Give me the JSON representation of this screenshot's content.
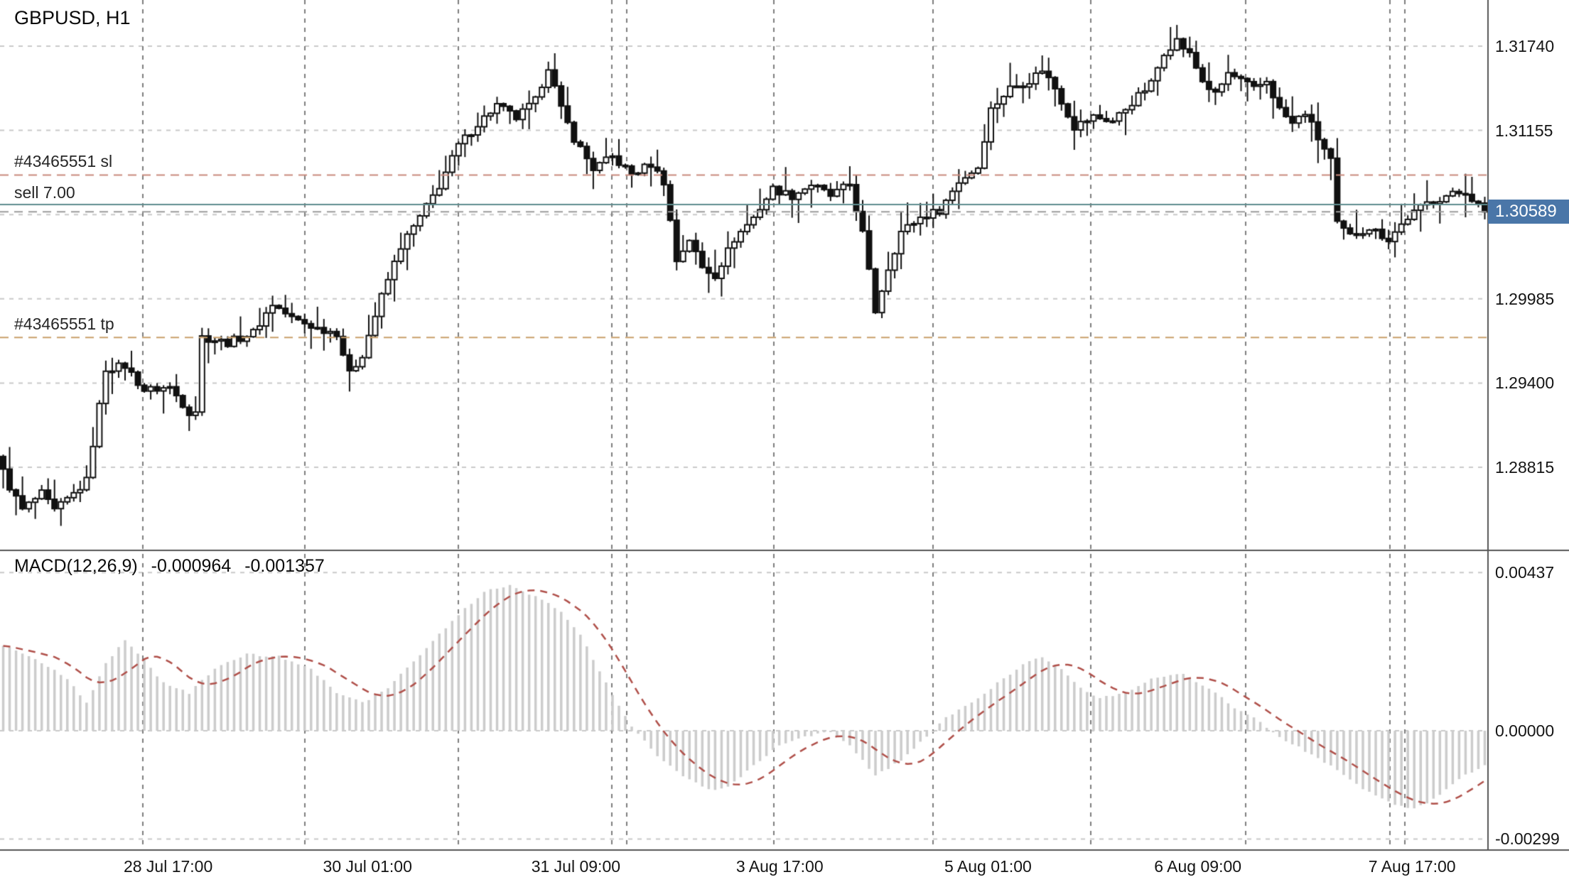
{
  "header": {
    "symbol_label": "GBPUSD, H1"
  },
  "indicator_label": {
    "name": "MACD(12,26,9)",
    "main": "-0.000964",
    "signal": "-0.001357"
  },
  "trade": {
    "sl": {
      "label": "#43465551 sl",
      "price": 1.30845
    },
    "tp": {
      "label": "#43465551 tp",
      "price": 1.29717
    },
    "open": {
      "label": "sell 7.00",
      "price": 1.3064
    },
    "bid": {
      "label": "1.30589",
      "price": 1.30589
    }
  },
  "colors": {
    "background": "#ffffff",
    "grid_h": "#c9c9c9",
    "grid_v": "#7e7e7e",
    "candle_up_fill": "#ffffff",
    "candle_down_fill": "#111111",
    "candle_border": "#111111",
    "macd_histogram": "#cccccc",
    "macd_signal": "#b0504a",
    "price_box": "#4a76a8",
    "sl_line": "#c98a7d",
    "tp_line": "#c9a06b",
    "open_line": "#5f8d8f",
    "bid_line": "#9b9b9b",
    "panel_border": "#555555"
  },
  "chart_data": {
    "type": "candlestick",
    "title": "GBPUSD, H1",
    "symbol": "GBPUSD",
    "timeframe": "H1",
    "bars": 232,
    "last_close": 1.30589,
    "price_path_anchors": [
      [
        0,
        1.2889
      ],
      [
        2,
        1.2868
      ],
      [
        4,
        1.2852
      ],
      [
        7,
        1.2863
      ],
      [
        9,
        1.2851
      ],
      [
        12,
        1.2863
      ],
      [
        14,
        1.2872
      ],
      [
        17,
        1.295
      ],
      [
        20,
        1.2952
      ],
      [
        23,
        1.2935
      ],
      [
        27,
        1.2937
      ],
      [
        30,
        1.292
      ],
      [
        31,
        1.2921
      ],
      [
        32,
        1.2972
      ],
      [
        36,
        1.2968
      ],
      [
        40,
        1.2975
      ],
      [
        43,
        1.2995
      ],
      [
        46,
        1.2985
      ],
      [
        50,
        1.2978
      ],
      [
        53,
        1.2975
      ],
      [
        55,
        1.2946
      ],
      [
        57,
        1.296
      ],
      [
        60,
        1.3
      ],
      [
        63,
        1.3035
      ],
      [
        66,
        1.3055
      ],
      [
        69,
        1.3077
      ],
      [
        72,
        1.3105
      ],
      [
        75,
        1.312
      ],
      [
        78,
        1.3133
      ],
      [
        81,
        1.3124
      ],
      [
        84,
        1.3136
      ],
      [
        86,
        1.316
      ],
      [
        88,
        1.313
      ],
      [
        90,
        1.311
      ],
      [
        93,
        1.3089
      ],
      [
        96,
        1.3097
      ],
      [
        99,
        1.3085
      ],
      [
        102,
        1.3092
      ],
      [
        104,
        1.308
      ],
      [
        106,
        1.3025
      ],
      [
        108,
        1.304
      ],
      [
        110,
        1.302
      ],
      [
        112,
        1.3015
      ],
      [
        115,
        1.304
      ],
      [
        118,
        1.3055
      ],
      [
        121,
        1.3075
      ],
      [
        124,
        1.307
      ],
      [
        127,
        1.3078
      ],
      [
        130,
        1.307
      ],
      [
        133,
        1.3078
      ],
      [
        135,
        1.3044
      ],
      [
        137,
        1.299
      ],
      [
        139,
        1.302
      ],
      [
        141,
        1.3045
      ],
      [
        144,
        1.3055
      ],
      [
        147,
        1.306
      ],
      [
        150,
        1.308
      ],
      [
        153,
        1.309
      ],
      [
        155,
        1.313
      ],
      [
        158,
        1.3145
      ],
      [
        161,
        1.315
      ],
      [
        163,
        1.3158
      ],
      [
        165,
        1.3145
      ],
      [
        168,
        1.3118
      ],
      [
        171,
        1.3125
      ],
      [
        174,
        1.3122
      ],
      [
        177,
        1.3135
      ],
      [
        180,
        1.3148
      ],
      [
        182,
        1.317
      ],
      [
        184,
        1.3178
      ],
      [
        186,
        1.3168
      ],
      [
        188,
        1.315
      ],
      [
        190,
        1.314
      ],
      [
        192,
        1.3155
      ],
      [
        194,
        1.315
      ],
      [
        196,
        1.3144
      ],
      [
        198,
        1.315
      ],
      [
        200,
        1.313
      ],
      [
        202,
        1.312
      ],
      [
        204,
        1.3128
      ],
      [
        206,
        1.311
      ],
      [
        208,
        1.3095
      ],
      [
        209,
        1.305
      ],
      [
        211,
        1.3042
      ],
      [
        214,
        1.3048
      ],
      [
        217,
        1.304
      ],
      [
        220,
        1.3055
      ],
      [
        223,
        1.3065
      ],
      [
        226,
        1.307
      ],
      [
        229,
        1.3073
      ],
      [
        232,
        1.30589
      ]
    ],
    "indicator": {
      "type": "macd_histogram",
      "fast": 12,
      "slow": 26,
      "signal_period": 9,
      "last_main": -0.000964,
      "last_signal": -0.001357,
      "anchors": [
        [
          0,
          0.00237
        ],
        [
          5,
          0.00197
        ],
        [
          10,
          0.00144
        ],
        [
          13,
          0.00077
        ],
        [
          16,
          0.00184
        ],
        [
          19,
          0.0025
        ],
        [
          22,
          0.00197
        ],
        [
          25,
          0.00131
        ],
        [
          29,
          0.00104
        ],
        [
          33,
          0.00171
        ],
        [
          38,
          0.00211
        ],
        [
          43,
          0.00205
        ],
        [
          48,
          0.00171
        ],
        [
          52,
          0.00104
        ],
        [
          56,
          0.00077
        ],
        [
          60,
          0.00117
        ],
        [
          65,
          0.00211
        ],
        [
          70,
          0.00304
        ],
        [
          75,
          0.00384
        ],
        [
          79,
          0.00402
        ],
        [
          83,
          0.0037
        ],
        [
          87,
          0.0033
        ],
        [
          90,
          0.00264
        ],
        [
          94,
          0.00131
        ],
        [
          98,
          0.00011
        ],
        [
          102,
          -0.00069
        ],
        [
          106,
          -0.00123
        ],
        [
          110,
          -0.00163
        ],
        [
          113,
          -0.00157
        ],
        [
          117,
          -0.00096
        ],
        [
          121,
          -0.00043
        ],
        [
          125,
          -0.00016
        ],
        [
          129,
          -3e-05
        ],
        [
          132,
          -0.00043
        ],
        [
          136,
          -0.00123
        ],
        [
          140,
          -0.00083
        ],
        [
          144,
          -0.00016
        ],
        [
          147,
          0.00037
        ],
        [
          151,
          0.00077
        ],
        [
          155,
          0.00131
        ],
        [
          159,
          0.00184
        ],
        [
          162,
          0.00205
        ],
        [
          165,
          0.00171
        ],
        [
          168,
          0.00117
        ],
        [
          171,
          0.00091
        ],
        [
          175,
          0.00104
        ],
        [
          179,
          0.00144
        ],
        [
          184,
          0.00157
        ],
        [
          188,
          0.00117
        ],
        [
          192,
          0.00064
        ],
        [
          196,
          0.00024
        ],
        [
          199,
          -0.00016
        ],
        [
          203,
          -0.00056
        ],
        [
          207,
          -0.00096
        ],
        [
          211,
          -0.00149
        ],
        [
          215,
          -0.00189
        ],
        [
          219,
          -0.00216
        ],
        [
          222,
          -0.00203
        ],
        [
          225,
          -0.00163
        ],
        [
          228,
          -0.00123
        ],
        [
          231,
          -0.000964
        ]
      ]
    },
    "y_axis": {
      "ticks": [
        {
          "v": 1.3174,
          "label": "1.31740"
        },
        {
          "v": 1.31155,
          "label": "1.31155"
        },
        {
          "v": 1.29985,
          "label": "1.29985"
        },
        {
          "v": 1.294,
          "label": "1.29400"
        },
        {
          "v": 1.28815,
          "label": "1.28815"
        }
      ],
      "grid_extra": [
        1.3057
      ],
      "current": {
        "v": 1.30589,
        "label": "1.30589"
      }
    },
    "macd_axis": {
      "ticks": [
        {
          "v": 0.00437,
          "label": "0.00437"
        },
        {
          "v": 0.0,
          "label": "0.00000"
        },
        {
          "v": -0.00299,
          "label": "-0.00299"
        }
      ]
    },
    "x_axis": {
      "ticks": [
        {
          "f": 0.113,
          "label": "28 Jul 17:00"
        },
        {
          "f": 0.247,
          "label": "30 Jul 01:00"
        },
        {
          "f": 0.387,
          "label": "31 Jul 09:00"
        },
        {
          "f": 0.524,
          "label": "3 Aug 17:00"
        },
        {
          "f": 0.664,
          "label": "5 Aug 01:00"
        },
        {
          "f": 0.805,
          "label": "6 Aug 09:00"
        },
        {
          "f": 0.949,
          "label": "7 Aug 17:00"
        }
      ]
    },
    "day_separators_f": [
      0.096,
      0.205,
      0.308,
      0.411,
      0.421,
      0.52,
      0.627,
      0.733,
      0.837,
      0.934,
      0.944
    ]
  }
}
